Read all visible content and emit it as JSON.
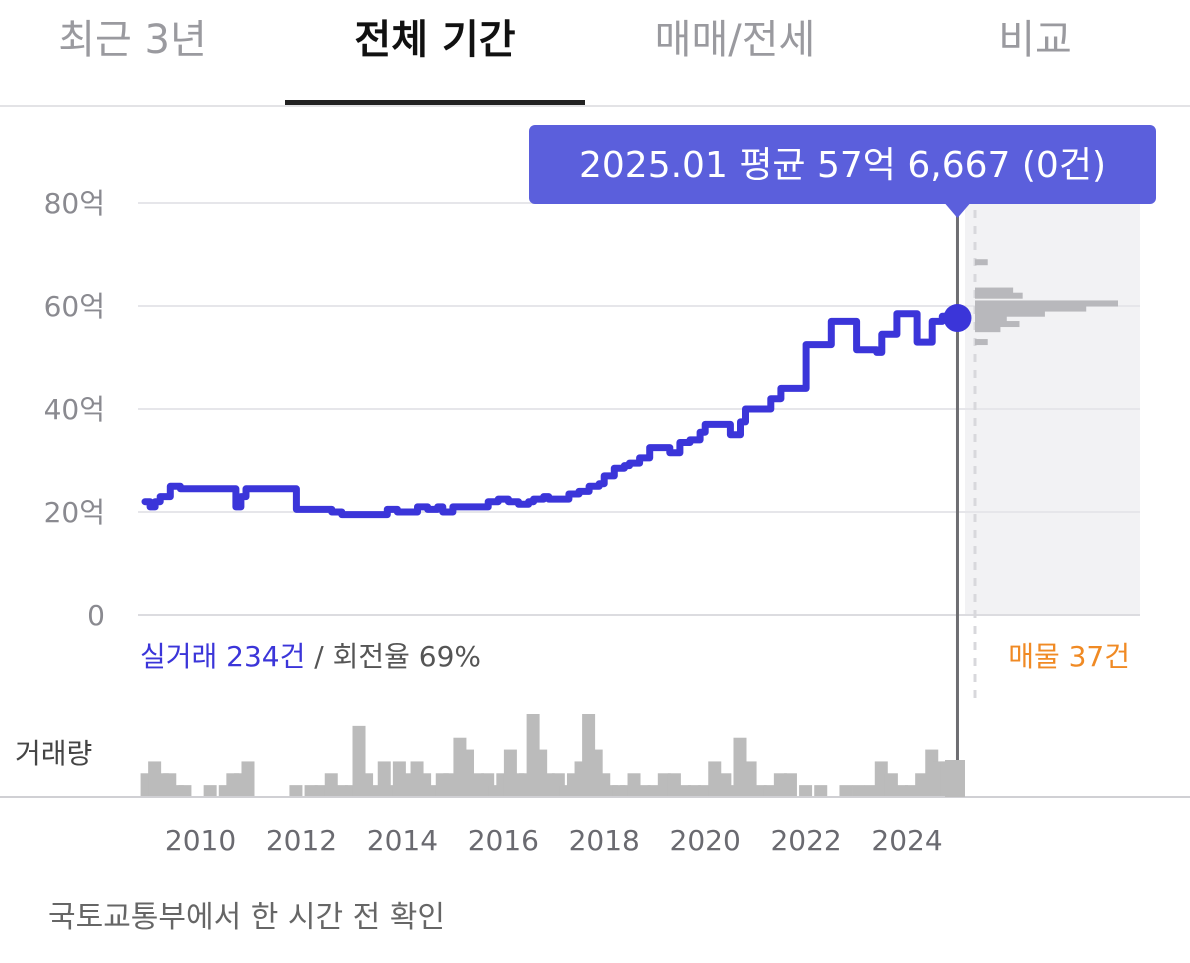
{
  "tabs": [
    {
      "label": "최근 3년",
      "active": false
    },
    {
      "label": "전체 기간",
      "active": true
    },
    {
      "label": "매매/전세",
      "active": false
    },
    {
      "label": "비교",
      "active": false
    }
  ],
  "tooltip": {
    "text": "2025.01 평균 57억 6,667 (0건)"
  },
  "summary": {
    "trades": "실거래 234건",
    "separator": " / ",
    "turnover": "회전율 69%",
    "listings": "매물 37건"
  },
  "volume_label": "거래량",
  "footer": "국토교통부에서 한 시간 전 확인",
  "colors": {
    "line": "#3b35d9",
    "accent": "#5b5fdc",
    "listing": "#f08a24",
    "volume": "#bbbbbb",
    "grid": "#e6e6ea"
  },
  "chart_data": {
    "type": "line",
    "y_tick_labels": [
      "0",
      "20억",
      "40억",
      "60억",
      "80억"
    ],
    "ylim": [
      0,
      80
    ],
    "x_tick_labels": [
      "2010",
      "2012",
      "2014",
      "2016",
      "2018",
      "2020",
      "2022",
      "2024"
    ],
    "xlim": [
      2008.8,
      2025.05
    ],
    "series": [
      {
        "values_unit": "억",
        "x": [
          2008.9,
          2009.0,
          2009.1,
          2009.2,
          2009.3,
          2009.4,
          2009.5,
          2009.6,
          2009.8,
          2010.0,
          2010.3,
          2010.6,
          2010.7,
          2010.8,
          2010.9,
          2011.0,
          2011.3,
          2011.6,
          2011.8,
          2011.9,
          2012.2,
          2012.4,
          2012.6,
          2012.8,
          2013.0,
          2013.3,
          2013.5,
          2013.7,
          2013.9,
          2014.1,
          2014.3,
          2014.5,
          2014.7,
          2014.8,
          2015.0,
          2015.3,
          2015.5,
          2015.7,
          2015.9,
          2016.1,
          2016.3,
          2016.5,
          2016.6,
          2016.8,
          2016.9,
          2017.1,
          2017.3,
          2017.5,
          2017.7,
          2017.9,
          2018.0,
          2018.2,
          2018.4,
          2018.5,
          2018.7,
          2018.9,
          2019.1,
          2019.3,
          2019.5,
          2019.7,
          2019.9,
          2020.0,
          2020.2,
          2020.4,
          2020.5,
          2020.7,
          2020.8,
          2021.0,
          2021.3,
          2021.5,
          2021.6,
          2021.9,
          2022.0,
          2022.1,
          2022.3,
          2022.5,
          2022.7,
          2022.8,
          2023.0,
          2023.2,
          2023.4,
          2023.5,
          2023.6,
          2023.8,
          2023.9,
          2024.0,
          2024.2,
          2024.4,
          2024.5,
          2024.7,
          2024.9,
          2025.0
        ],
        "values": [
          22,
          21,
          22,
          23,
          23,
          25,
          25,
          24.5,
          24.5,
          24.5,
          24.5,
          24.5,
          21,
          23,
          24.5,
          24.5,
          24.5,
          24.5,
          24.5,
          20.5,
          20.5,
          20.5,
          20,
          19.5,
          19.5,
          19.5,
          19.5,
          20.5,
          20,
          20,
          21,
          20.5,
          21,
          20,
          21,
          21,
          21,
          22,
          22.5,
          22,
          21.5,
          22,
          22.5,
          23,
          22.5,
          22.5,
          23.5,
          24,
          25,
          25.5,
          27,
          28.5,
          29,
          29.5,
          30.5,
          32.5,
          32.5,
          31.5,
          33.5,
          34,
          35.5,
          37,
          37,
          37,
          35,
          37.5,
          40,
          40,
          42,
          44,
          44,
          44,
          52.5,
          52.5,
          52.5,
          57,
          57,
          57,
          51.5,
          51.5,
          51,
          54.5,
          54.5,
          58.5,
          58.5,
          58.5,
          53,
          53,
          57,
          58,
          58,
          57.7
        ]
      }
    ],
    "highlight": {
      "x": 2025.0,
      "value": 57.6667,
      "label": "2025.01"
    },
    "listing_histogram": {
      "values": [
        65,
        60,
        57.5
      ],
      "bins": [
        {
          "value": 68.5,
          "count": 4
        },
        {
          "value": 63,
          "count": 12
        },
        {
          "value": 62,
          "count": 15
        },
        {
          "value": 60.5,
          "count": 45
        },
        {
          "value": 59.5,
          "count": 35
        },
        {
          "value": 58.5,
          "count": 22
        },
        {
          "value": 57.5,
          "count": 10
        },
        {
          "value": 56.5,
          "count": 14
        },
        {
          "value": 55.5,
          "count": 8
        },
        {
          "value": 53,
          "count": 4
        }
      ]
    },
    "volume_bars": {
      "x": [
        2008.95,
        2009.1,
        2009.25,
        2009.4,
        2009.55,
        2009.7,
        2010.2,
        2010.5,
        2010.65,
        2010.8,
        2010.95,
        2011.9,
        2012.2,
        2012.4,
        2012.6,
        2012.8,
        2013.0,
        2013.15,
        2013.3,
        2013.5,
        2013.65,
        2013.8,
        2013.95,
        2014.1,
        2014.3,
        2014.45,
        2014.65,
        2014.8,
        2014.95,
        2015.15,
        2015.3,
        2015.5,
        2015.7,
        2015.85,
        2016.0,
        2016.15,
        2016.3,
        2016.45,
        2016.6,
        2016.75,
        2016.9,
        2017.1,
        2017.25,
        2017.4,
        2017.55,
        2017.7,
        2017.85,
        2018.0,
        2018.15,
        2018.3,
        2018.45,
        2018.6,
        2018.8,
        2019.0,
        2019.2,
        2019.4,
        2019.6,
        2019.8,
        2020.0,
        2020.2,
        2020.4,
        2020.55,
        2020.7,
        2020.9,
        2021.1,
        2021.3,
        2021.5,
        2021.7,
        2022.0,
        2022.3,
        2022.8,
        2023.05,
        2023.3,
        2023.5,
        2023.7,
        2023.9,
        2024.1,
        2024.3,
        2024.5,
        2024.65,
        2024.8,
        2024.95
      ],
      "values": [
        2,
        3,
        2,
        2,
        1,
        1,
        1,
        1,
        2,
        2,
        3,
        1,
        1,
        1,
        2,
        1,
        1,
        6,
        2,
        1,
        3,
        1,
        3,
        2,
        3,
        2,
        1,
        2,
        2,
        5,
        4,
        2,
        2,
        1,
        2,
        4,
        2,
        2,
        7,
        4,
        2,
        2,
        1,
        2,
        3,
        7,
        4,
        2,
        1,
        1,
        1,
        2,
        1,
        1,
        2,
        2,
        1,
        1,
        1,
        3,
        2,
        1,
        5,
        3,
        1,
        1,
        2,
        2,
        1,
        1,
        1,
        1,
        1,
        3,
        2,
        1,
        1,
        2,
        4,
        3,
        3,
        3
      ]
    }
  }
}
